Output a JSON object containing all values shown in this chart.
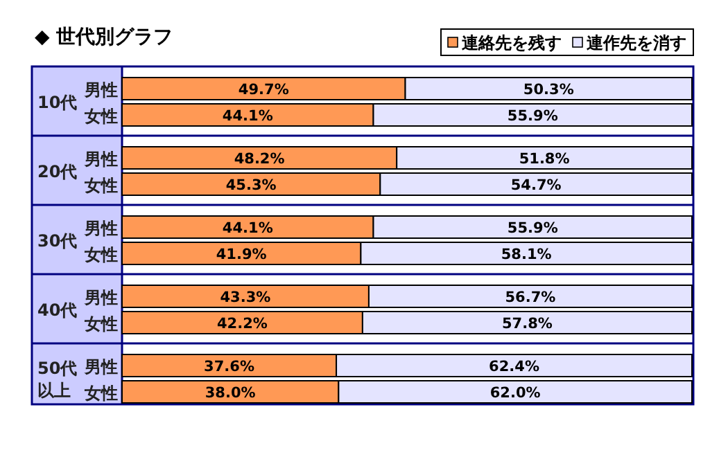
{
  "chart_data": {
    "type": "bar",
    "orientation": "horizontal",
    "stacked": true,
    "legend": "top right",
    "title": "◆ 世代別グラフ",
    "categories": [
      "男性",
      "女性",
      "男性",
      "女性",
      "男性",
      "女性",
      "男性",
      "女性",
      "男性",
      "女性"
    ],
    "annotations": [
      "10代",
      "20代",
      "30代",
      "40代",
      "50代以上"
    ],
    "series": [
      {
        "name": "連絡先を残す",
        "color": "#ff9955",
        "values": [
          49.7,
          44.1,
          48.2,
          45.3,
          44.1,
          41.9,
          43.3,
          42.2,
          37.6,
          38.0
        ],
        "value_labels": [
          "49.7%",
          "44.1%",
          "48.2%",
          "45.3%",
          "44.1%",
          "41.9%",
          "43.3%",
          "42.2%",
          "37.6%",
          "38.0%"
        ]
      },
      {
        "name": "連作先を消す",
        "color": "#e4e4ff",
        "values": [
          50.3,
          55.9,
          51.8,
          54.7,
          55.9,
          58.1,
          56.7,
          57.8,
          62.4,
          62.0
        ],
        "value_labels": [
          "50.3%",
          "55.9%",
          "51.8%",
          "54.7%",
          "55.9%",
          "58.1%",
          "56.7%",
          "57.8%",
          "62.4%",
          "62.0%"
        ]
      }
    ]
  }
}
